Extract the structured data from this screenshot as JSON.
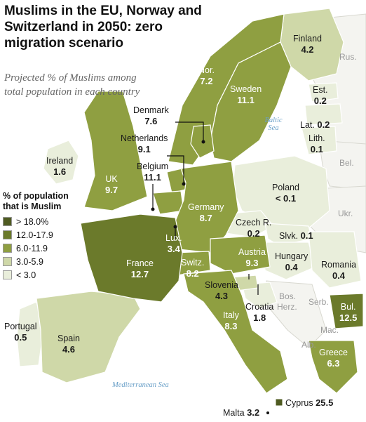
{
  "title": "Muslims in the EU, Norway and Switzerland in 2050: zero migration scenario",
  "subtitle": "Projected % of Muslims among total population in each country",
  "legend": {
    "title": "% of population that is Muslim",
    "items": [
      {
        "label": "> 18.0%",
        "color": "#4f5b21"
      },
      {
        "label": "12.0-17.9",
        "color": "#6b7a2b"
      },
      {
        "label": "6.0-11.9",
        "color": "#8f9f41"
      },
      {
        "label": "3.0-5.9",
        "color": "#cfd8a8"
      },
      {
        "label": "< 3.0",
        "color": "#e9eedb"
      }
    ]
  },
  "countries": {
    "finland": {
      "name": "Finland",
      "value": "4.2"
    },
    "norway": {
      "name": "Nor.",
      "value": "7.2"
    },
    "sweden": {
      "name": "Sweden",
      "value": "11.1"
    },
    "estonia": {
      "name": "Est.",
      "value": "0.2"
    },
    "latvia": {
      "name": "Lat.",
      "value": "0.2"
    },
    "lithuania": {
      "name": "Lith.",
      "value": "0.1"
    },
    "denmark": {
      "name": "Denmark",
      "value": "7.6"
    },
    "netherlands": {
      "name": "Netherlands",
      "value": "9.1"
    },
    "belgium": {
      "name": "Belgium",
      "value": "11.1"
    },
    "ireland": {
      "name": "Ireland",
      "value": "1.6"
    },
    "uk": {
      "name": "UK",
      "value": "9.7"
    },
    "poland": {
      "name": "Poland",
      "value": "< 0.1"
    },
    "germany": {
      "name": "Germany",
      "value": "8.7"
    },
    "czech": {
      "name": "Czech R.",
      "value": "0.2"
    },
    "slovakia": {
      "name": "Slvk.",
      "value": "0.1"
    },
    "luxembourg": {
      "name": "Lux.",
      "value": "3.4"
    },
    "austria": {
      "name": "Austria",
      "value": "9.3"
    },
    "hungary": {
      "name": "Hungary",
      "value": "0.4"
    },
    "romania": {
      "name": "Romania",
      "value": "0.4"
    },
    "france": {
      "name": "France",
      "value": "12.7"
    },
    "switzerland": {
      "name": "Switz.",
      "value": "8.2"
    },
    "slovenia": {
      "name": "Slovenia",
      "value": "4.3"
    },
    "croatia": {
      "name": "Croatia",
      "value": "1.8"
    },
    "italy": {
      "name": "Italy",
      "value": "8.3"
    },
    "bulgaria": {
      "name": "Bul.",
      "value": "12.5"
    },
    "portugal": {
      "name": "Portugal",
      "value": "0.5"
    },
    "spain": {
      "name": "Spain",
      "value": "4.6"
    },
    "greece": {
      "name": "Greece",
      "value": "6.3"
    },
    "malta": {
      "name": "Malta",
      "value": "3.2"
    },
    "cyprus": {
      "name": "Cyprus",
      "value": "25.5"
    }
  },
  "non_eu_labels": {
    "russia": "Rus.",
    "belarus": "Bel.",
    "ukraine": "Ukr.",
    "bosnia": "Bos.",
    "herzegovina": "Herz.",
    "serbia": "Serb.",
    "macedonia": "Mac.",
    "albania": "Alb."
  },
  "seas": {
    "baltic": "Baltic Sea",
    "mediterranean": "Mediterranean Sea"
  },
  "colors": {
    "bin_18_plus": "#4f5b21",
    "bin_12_17": "#6b7a2b",
    "bin_6_11": "#8f9f41",
    "bin_3_5": "#cfd8a8",
    "bin_under_3": "#e9eedb",
    "non_eu": "#f4f4f0",
    "sea_label": "#6aa0c8"
  }
}
